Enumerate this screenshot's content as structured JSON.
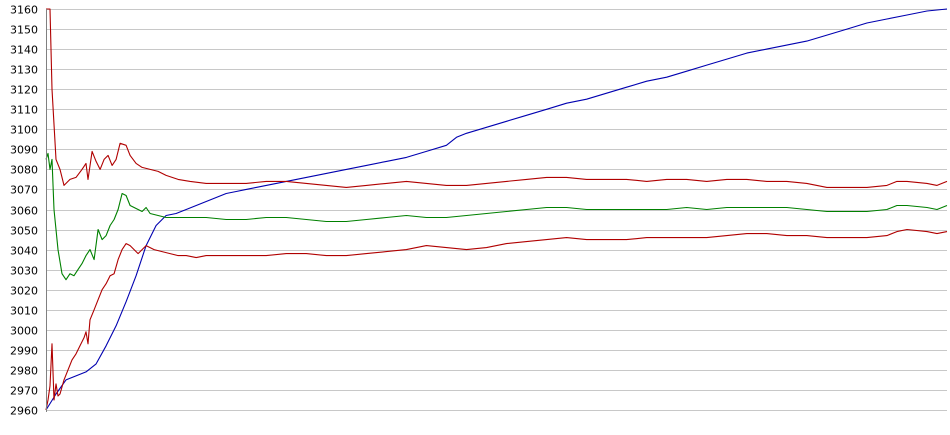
{
  "chart_data": {
    "type": "line",
    "title": "",
    "xlabel": "",
    "ylabel": "",
    "ylim": [
      2960,
      3160
    ],
    "xlim": [
      0,
      450
    ],
    "grid": true,
    "legend": "none",
    "y_ticks": [
      "2960",
      "2970",
      "2980",
      "2990",
      "3000",
      "3010",
      "3020",
      "3030",
      "3040",
      "3050",
      "3060",
      "3070",
      "3080",
      "3090",
      "3100",
      "3110",
      "3120",
      "3130",
      "3140",
      "3150",
      "3160"
    ],
    "series": [
      {
        "color": "#0000b0",
        "points": [
          [
            0,
            2960
          ],
          [
            5,
            2968
          ],
          [
            10,
            2975
          ],
          [
            15,
            2977
          ],
          [
            20,
            2979
          ],
          [
            25,
            2983
          ],
          [
            30,
            2992
          ],
          [
            35,
            3002
          ],
          [
            40,
            3014
          ],
          [
            45,
            3027
          ],
          [
            50,
            3042
          ],
          [
            55,
            3052
          ],
          [
            60,
            3057
          ],
          [
            65,
            3058
          ],
          [
            70,
            3060
          ],
          [
            75,
            3062
          ],
          [
            80,
            3064
          ],
          [
            85,
            3066
          ],
          [
            90,
            3068
          ],
          [
            95,
            3069
          ],
          [
            100,
            3070
          ],
          [
            105,
            3071
          ],
          [
            110,
            3072
          ],
          [
            120,
            3074
          ],
          [
            130,
            3076
          ],
          [
            140,
            3078
          ],
          [
            150,
            3080
          ],
          [
            160,
            3082
          ],
          [
            170,
            3084
          ],
          [
            180,
            3086
          ],
          [
            190,
            3089
          ],
          [
            200,
            3092
          ],
          [
            205,
            3096
          ],
          [
            210,
            3098
          ],
          [
            220,
            3101
          ],
          [
            230,
            3104
          ],
          [
            240,
            3107
          ],
          [
            250,
            3110
          ],
          [
            260,
            3113
          ],
          [
            270,
            3115
          ],
          [
            280,
            3118
          ],
          [
            290,
            3121
          ],
          [
            300,
            3124
          ],
          [
            310,
            3126
          ],
          [
            320,
            3129
          ],
          [
            330,
            3132
          ],
          [
            340,
            3135
          ],
          [
            350,
            3138
          ],
          [
            360,
            3140
          ],
          [
            370,
            3142
          ],
          [
            380,
            3144
          ],
          [
            390,
            3147
          ],
          [
            400,
            3150
          ],
          [
            410,
            3153
          ],
          [
            420,
            3155
          ],
          [
            430,
            3157
          ],
          [
            440,
            3159
          ],
          [
            450,
            3160
          ]
        ]
      },
      {
        "color": "#b00000",
        "points": [
          [
            0,
            3160
          ],
          [
            2,
            3160
          ],
          [
            3,
            3120
          ],
          [
            5,
            3085
          ],
          [
            7,
            3080
          ],
          [
            9,
            3072
          ],
          [
            12,
            3075
          ],
          [
            15,
            3076
          ],
          [
            18,
            3080
          ],
          [
            20,
            3083
          ],
          [
            21,
            3075
          ],
          [
            23,
            3089
          ],
          [
            25,
            3084
          ],
          [
            27,
            3080
          ],
          [
            29,
            3085
          ],
          [
            31,
            3087
          ],
          [
            33,
            3082
          ],
          [
            35,
            3085
          ],
          [
            37,
            3093
          ],
          [
            40,
            3092
          ],
          [
            42,
            3087
          ],
          [
            45,
            3083
          ],
          [
            48,
            3081
          ],
          [
            52,
            3080
          ],
          [
            56,
            3079
          ],
          [
            60,
            3077
          ],
          [
            66,
            3075
          ],
          [
            72,
            3074
          ],
          [
            80,
            3073
          ],
          [
            90,
            3073
          ],
          [
            100,
            3073
          ],
          [
            110,
            3074
          ],
          [
            120,
            3074
          ],
          [
            130,
            3073
          ],
          [
            140,
            3072
          ],
          [
            150,
            3071
          ],
          [
            160,
            3072
          ],
          [
            170,
            3073
          ],
          [
            180,
            3074
          ],
          [
            190,
            3073
          ],
          [
            200,
            3072
          ],
          [
            210,
            3072
          ],
          [
            220,
            3073
          ],
          [
            230,
            3074
          ],
          [
            240,
            3075
          ],
          [
            250,
            3076
          ],
          [
            260,
            3076
          ],
          [
            270,
            3075
          ],
          [
            280,
            3075
          ],
          [
            290,
            3075
          ],
          [
            300,
            3074
          ],
          [
            310,
            3075
          ],
          [
            320,
            3075
          ],
          [
            330,
            3074
          ],
          [
            340,
            3075
          ],
          [
            350,
            3075
          ],
          [
            360,
            3074
          ],
          [
            370,
            3074
          ],
          [
            380,
            3073
          ],
          [
            390,
            3071
          ],
          [
            400,
            3071
          ],
          [
            410,
            3071
          ],
          [
            420,
            3072
          ],
          [
            425,
            3074
          ],
          [
            430,
            3074
          ],
          [
            440,
            3073
          ],
          [
            445,
            3072
          ],
          [
            450,
            3074
          ]
        ]
      },
      {
        "color": "#008000",
        "points": [
          [
            0,
            3085
          ],
          [
            1,
            3088
          ],
          [
            2,
            3080
          ],
          [
            3,
            3085
          ],
          [
            4,
            3060
          ],
          [
            6,
            3040
          ],
          [
            8,
            3028
          ],
          [
            10,
            3025
          ],
          [
            12,
            3028
          ],
          [
            14,
            3027
          ],
          [
            16,
            3030
          ],
          [
            18,
            3033
          ],
          [
            20,
            3037
          ],
          [
            22,
            3040
          ],
          [
            24,
            3035
          ],
          [
            26,
            3050
          ],
          [
            28,
            3045
          ],
          [
            30,
            3047
          ],
          [
            32,
            3052
          ],
          [
            34,
            3055
          ],
          [
            36,
            3060
          ],
          [
            38,
            3068
          ],
          [
            40,
            3067
          ],
          [
            42,
            3062
          ],
          [
            44,
            3061
          ],
          [
            46,
            3060
          ],
          [
            48,
            3059
          ],
          [
            50,
            3061
          ],
          [
            52,
            3058
          ],
          [
            56,
            3057
          ],
          [
            60,
            3056
          ],
          [
            70,
            3056
          ],
          [
            80,
            3056
          ],
          [
            90,
            3055
          ],
          [
            100,
            3055
          ],
          [
            110,
            3056
          ],
          [
            120,
            3056
          ],
          [
            130,
            3055
          ],
          [
            140,
            3054
          ],
          [
            150,
            3054
          ],
          [
            160,
            3055
          ],
          [
            170,
            3056
          ],
          [
            180,
            3057
          ],
          [
            190,
            3056
          ],
          [
            200,
            3056
          ],
          [
            210,
            3057
          ],
          [
            220,
            3058
          ],
          [
            230,
            3059
          ],
          [
            240,
            3060
          ],
          [
            250,
            3061
          ],
          [
            260,
            3061
          ],
          [
            270,
            3060
          ],
          [
            280,
            3060
          ],
          [
            290,
            3060
          ],
          [
            300,
            3060
          ],
          [
            310,
            3060
          ],
          [
            320,
            3061
          ],
          [
            330,
            3060
          ],
          [
            340,
            3061
          ],
          [
            350,
            3061
          ],
          [
            360,
            3061
          ],
          [
            370,
            3061
          ],
          [
            380,
            3060
          ],
          [
            390,
            3059
          ],
          [
            400,
            3059
          ],
          [
            410,
            3059
          ],
          [
            420,
            3060
          ],
          [
            425,
            3062
          ],
          [
            430,
            3062
          ],
          [
            440,
            3061
          ],
          [
            445,
            3060
          ],
          [
            450,
            3062
          ]
        ]
      },
      {
        "color": "#b00000",
        "points": [
          [
            0,
            2960
          ],
          [
            1,
            2965
          ],
          [
            2,
            2972
          ],
          [
            3,
            2993
          ],
          [
            4,
            2965
          ],
          [
            5,
            2973
          ],
          [
            6,
            2967
          ],
          [
            7,
            2968
          ],
          [
            9,
            2975
          ],
          [
            11,
            2980
          ],
          [
            13,
            2985
          ],
          [
            15,
            2988
          ],
          [
            17,
            2992
          ],
          [
            19,
            2996
          ],
          [
            20,
            2999
          ],
          [
            21,
            2993
          ],
          [
            22,
            3005
          ],
          [
            24,
            3010
          ],
          [
            26,
            3015
          ],
          [
            28,
            3020
          ],
          [
            30,
            3023
          ],
          [
            32,
            3027
          ],
          [
            34,
            3028
          ],
          [
            36,
            3035
          ],
          [
            38,
            3040
          ],
          [
            40,
            3043
          ],
          [
            42,
            3042
          ],
          [
            44,
            3040
          ],
          [
            46,
            3038
          ],
          [
            48,
            3040
          ],
          [
            50,
            3042
          ],
          [
            52,
            3041
          ],
          [
            54,
            3040
          ],
          [
            58,
            3039
          ],
          [
            62,
            3038
          ],
          [
            66,
            3037
          ],
          [
            70,
            3037
          ],
          [
            75,
            3036
          ],
          [
            80,
            3037
          ],
          [
            90,
            3037
          ],
          [
            100,
            3037
          ],
          [
            110,
            3037
          ],
          [
            120,
            3038
          ],
          [
            130,
            3038
          ],
          [
            140,
            3037
          ],
          [
            150,
            3037
          ],
          [
            160,
            3038
          ],
          [
            170,
            3039
          ],
          [
            180,
            3040
          ],
          [
            190,
            3042
          ],
          [
            200,
            3041
          ],
          [
            210,
            3040
          ],
          [
            220,
            3041
          ],
          [
            230,
            3043
          ],
          [
            240,
            3044
          ],
          [
            250,
            3045
          ],
          [
            260,
            3046
          ],
          [
            270,
            3045
          ],
          [
            280,
            3045
          ],
          [
            290,
            3045
          ],
          [
            300,
            3046
          ],
          [
            310,
            3046
          ],
          [
            320,
            3046
          ],
          [
            330,
            3046
          ],
          [
            340,
            3047
          ],
          [
            350,
            3048
          ],
          [
            360,
            3048
          ],
          [
            370,
            3047
          ],
          [
            380,
            3047
          ],
          [
            390,
            3046
          ],
          [
            400,
            3046
          ],
          [
            410,
            3046
          ],
          [
            420,
            3047
          ],
          [
            425,
            3049
          ],
          [
            430,
            3050
          ],
          [
            440,
            3049
          ],
          [
            445,
            3048
          ],
          [
            450,
            3049
          ]
        ]
      }
    ]
  }
}
